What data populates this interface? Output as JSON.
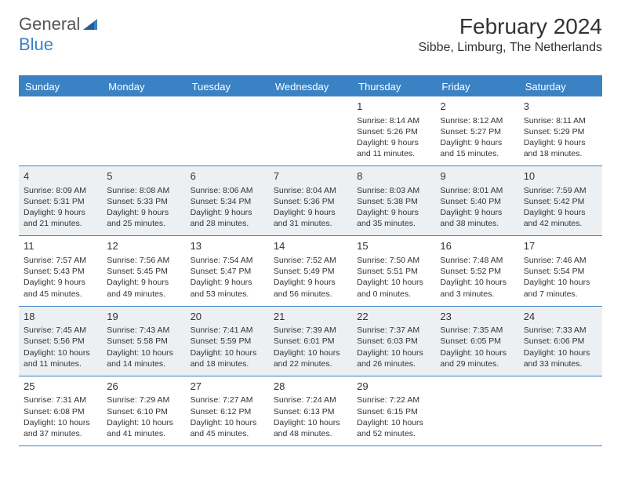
{
  "logo": {
    "word1": "General",
    "word2": "Blue"
  },
  "header": {
    "month_title": "February 2024",
    "location": "Sibbe, Limburg, The Netherlands"
  },
  "colors": {
    "accent": "#3b82c4",
    "alt_row_bg": "#edf0f2",
    "text": "#333333",
    "bg": "#ffffff"
  },
  "day_names": [
    "Sunday",
    "Monday",
    "Tuesday",
    "Wednesday",
    "Thursday",
    "Friday",
    "Saturday"
  ],
  "first_weekday_index": 4,
  "days_in_month": 29,
  "alt_weeks": [
    false,
    true,
    false,
    true,
    false
  ],
  "days": {
    "1": {
      "sunrise": "8:14 AM",
      "sunset": "5:26 PM",
      "daylight": "9 hours and 11 minutes."
    },
    "2": {
      "sunrise": "8:12 AM",
      "sunset": "5:27 PM",
      "daylight": "9 hours and 15 minutes."
    },
    "3": {
      "sunrise": "8:11 AM",
      "sunset": "5:29 PM",
      "daylight": "9 hours and 18 minutes."
    },
    "4": {
      "sunrise": "8:09 AM",
      "sunset": "5:31 PM",
      "daylight": "9 hours and 21 minutes."
    },
    "5": {
      "sunrise": "8:08 AM",
      "sunset": "5:33 PM",
      "daylight": "9 hours and 25 minutes."
    },
    "6": {
      "sunrise": "8:06 AM",
      "sunset": "5:34 PM",
      "daylight": "9 hours and 28 minutes."
    },
    "7": {
      "sunrise": "8:04 AM",
      "sunset": "5:36 PM",
      "daylight": "9 hours and 31 minutes."
    },
    "8": {
      "sunrise": "8:03 AM",
      "sunset": "5:38 PM",
      "daylight": "9 hours and 35 minutes."
    },
    "9": {
      "sunrise": "8:01 AM",
      "sunset": "5:40 PM",
      "daylight": "9 hours and 38 minutes."
    },
    "10": {
      "sunrise": "7:59 AM",
      "sunset": "5:42 PM",
      "daylight": "9 hours and 42 minutes."
    },
    "11": {
      "sunrise": "7:57 AM",
      "sunset": "5:43 PM",
      "daylight": "9 hours and 45 minutes."
    },
    "12": {
      "sunrise": "7:56 AM",
      "sunset": "5:45 PM",
      "daylight": "9 hours and 49 minutes."
    },
    "13": {
      "sunrise": "7:54 AM",
      "sunset": "5:47 PM",
      "daylight": "9 hours and 53 minutes."
    },
    "14": {
      "sunrise": "7:52 AM",
      "sunset": "5:49 PM",
      "daylight": "9 hours and 56 minutes."
    },
    "15": {
      "sunrise": "7:50 AM",
      "sunset": "5:51 PM",
      "daylight": "10 hours and 0 minutes."
    },
    "16": {
      "sunrise": "7:48 AM",
      "sunset": "5:52 PM",
      "daylight": "10 hours and 3 minutes."
    },
    "17": {
      "sunrise": "7:46 AM",
      "sunset": "5:54 PM",
      "daylight": "10 hours and 7 minutes."
    },
    "18": {
      "sunrise": "7:45 AM",
      "sunset": "5:56 PM",
      "daylight": "10 hours and 11 minutes."
    },
    "19": {
      "sunrise": "7:43 AM",
      "sunset": "5:58 PM",
      "daylight": "10 hours and 14 minutes."
    },
    "20": {
      "sunrise": "7:41 AM",
      "sunset": "5:59 PM",
      "daylight": "10 hours and 18 minutes."
    },
    "21": {
      "sunrise": "7:39 AM",
      "sunset": "6:01 PM",
      "daylight": "10 hours and 22 minutes."
    },
    "22": {
      "sunrise": "7:37 AM",
      "sunset": "6:03 PM",
      "daylight": "10 hours and 26 minutes."
    },
    "23": {
      "sunrise": "7:35 AM",
      "sunset": "6:05 PM",
      "daylight": "10 hours and 29 minutes."
    },
    "24": {
      "sunrise": "7:33 AM",
      "sunset": "6:06 PM",
      "daylight": "10 hours and 33 minutes."
    },
    "25": {
      "sunrise": "7:31 AM",
      "sunset": "6:08 PM",
      "daylight": "10 hours and 37 minutes."
    },
    "26": {
      "sunrise": "7:29 AM",
      "sunset": "6:10 PM",
      "daylight": "10 hours and 41 minutes."
    },
    "27": {
      "sunrise": "7:27 AM",
      "sunset": "6:12 PM",
      "daylight": "10 hours and 45 minutes."
    },
    "28": {
      "sunrise": "7:24 AM",
      "sunset": "6:13 PM",
      "daylight": "10 hours and 48 minutes."
    },
    "29": {
      "sunrise": "7:22 AM",
      "sunset": "6:15 PM",
      "daylight": "10 hours and 52 minutes."
    }
  },
  "labels": {
    "sunrise_prefix": "Sunrise: ",
    "sunset_prefix": "Sunset: ",
    "daylight_prefix": "Daylight: "
  }
}
